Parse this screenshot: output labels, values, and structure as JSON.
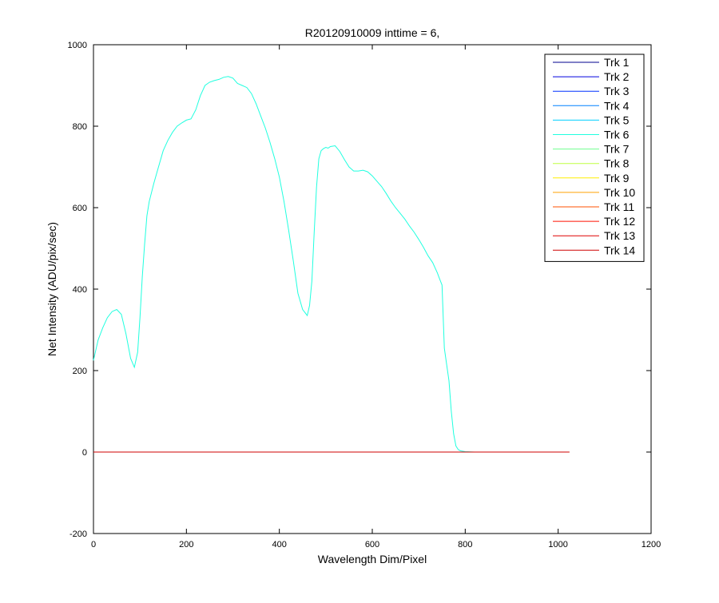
{
  "chart_data": {
    "type": "line",
    "title": "R20120910009 inttime = 6,",
    "xlabel": "Wavelength Dim/Pixel",
    "ylabel": "Net Intensity (ADU/pix/sec)",
    "xlim": [
      0,
      1200
    ],
    "ylim": [
      -200,
      1000
    ],
    "xticks": [
      0,
      200,
      400,
      600,
      800,
      1000,
      1200
    ],
    "yticks": [
      -200,
      0,
      200,
      400,
      600,
      800,
      1000
    ],
    "grid": false,
    "legend_position": "top-right",
    "series": [
      {
        "name": "Trk 1",
        "color": "#00008F",
        "x": [
          0,
          1024
        ],
        "y": [
          0,
          0
        ]
      },
      {
        "name": "Trk 2",
        "color": "#0000DF",
        "x": [
          0,
          1024
        ],
        "y": [
          0,
          0
        ]
      },
      {
        "name": "Trk 3",
        "color": "#0030FF",
        "x": [
          0,
          1024
        ],
        "y": [
          0,
          0
        ]
      },
      {
        "name": "Trk 4",
        "color": "#0080FF",
        "x": [
          0,
          1024
        ],
        "y": [
          0,
          0
        ]
      },
      {
        "name": "Trk 5",
        "color": "#00CFFF",
        "x": [
          0,
          1024
        ],
        "y": [
          0,
          0
        ]
      },
      {
        "name": "Trk 6",
        "color": "#20FFDF",
        "x": [
          0,
          10,
          20,
          30,
          40,
          50,
          60,
          70,
          80,
          88,
          95,
          100,
          105,
          110,
          115,
          120,
          130,
          140,
          150,
          160,
          170,
          180,
          190,
          200,
          210,
          220,
          230,
          240,
          250,
          260,
          270,
          280,
          290,
          300,
          310,
          320,
          330,
          340,
          350,
          360,
          370,
          380,
          390,
          400,
          410,
          420,
          430,
          440,
          450,
          460,
          465,
          470,
          475,
          480,
          485,
          490,
          495,
          500,
          505,
          510,
          520,
          530,
          540,
          550,
          560,
          570,
          580,
          590,
          600,
          610,
          620,
          630,
          640,
          650,
          660,
          670,
          680,
          690,
          700,
          710,
          720,
          730,
          740,
          745,
          750,
          755,
          760,
          765,
          770,
          775,
          780,
          785,
          790,
          800,
          820,
          850,
          900,
          1000,
          1024
        ],
        "y": [
          225,
          275,
          305,
          330,
          345,
          350,
          338,
          290,
          230,
          208,
          245,
          330,
          430,
          510,
          580,
          615,
          660,
          700,
          740,
          765,
          785,
          800,
          808,
          815,
          818,
          840,
          875,
          900,
          908,
          912,
          915,
          920,
          922,
          918,
          905,
          900,
          895,
          880,
          855,
          825,
          795,
          760,
          720,
          675,
          615,
          545,
          470,
          390,
          350,
          335,
          360,
          420,
          540,
          650,
          720,
          740,
          745,
          748,
          746,
          750,
          752,
          738,
          718,
          700,
          690,
          690,
          692,
          688,
          678,
          665,
          652,
          635,
          616,
          600,
          586,
          572,
          555,
          540,
          522,
          503,
          482,
          465,
          440,
          425,
          410,
          255,
          215,
          175,
          100,
          45,
          15,
          6,
          3,
          1,
          0,
          0,
          0,
          0,
          0
        ]
      },
      {
        "name": "Trk 7",
        "color": "#70FF8F",
        "x": [
          0,
          1024
        ],
        "y": [
          0,
          0
        ]
      },
      {
        "name": "Trk 8",
        "color": "#BFFF40",
        "x": [
          0,
          1024
        ],
        "y": [
          0,
          0
        ]
      },
      {
        "name": "Trk 9",
        "color": "#FFEF00",
        "x": [
          0,
          1024
        ],
        "y": [
          0,
          0
        ]
      },
      {
        "name": "Trk 10",
        "color": "#FFA000",
        "x": [
          0,
          1024
        ],
        "y": [
          0,
          0
        ]
      },
      {
        "name": "Trk 11",
        "color": "#FF5000",
        "x": [
          0,
          1024
        ],
        "y": [
          0,
          0
        ]
      },
      {
        "name": "Trk 12",
        "color": "#FF1000",
        "x": [
          0,
          1024
        ],
        "y": [
          0,
          0
        ]
      },
      {
        "name": "Trk 13",
        "color": "#DF0000",
        "x": [
          0,
          1024
        ],
        "y": [
          0,
          0
        ]
      },
      {
        "name": "Trk 14",
        "color": "#CF0000",
        "x": [
          0,
          1024
        ],
        "y": [
          0,
          0
        ]
      }
    ]
  }
}
